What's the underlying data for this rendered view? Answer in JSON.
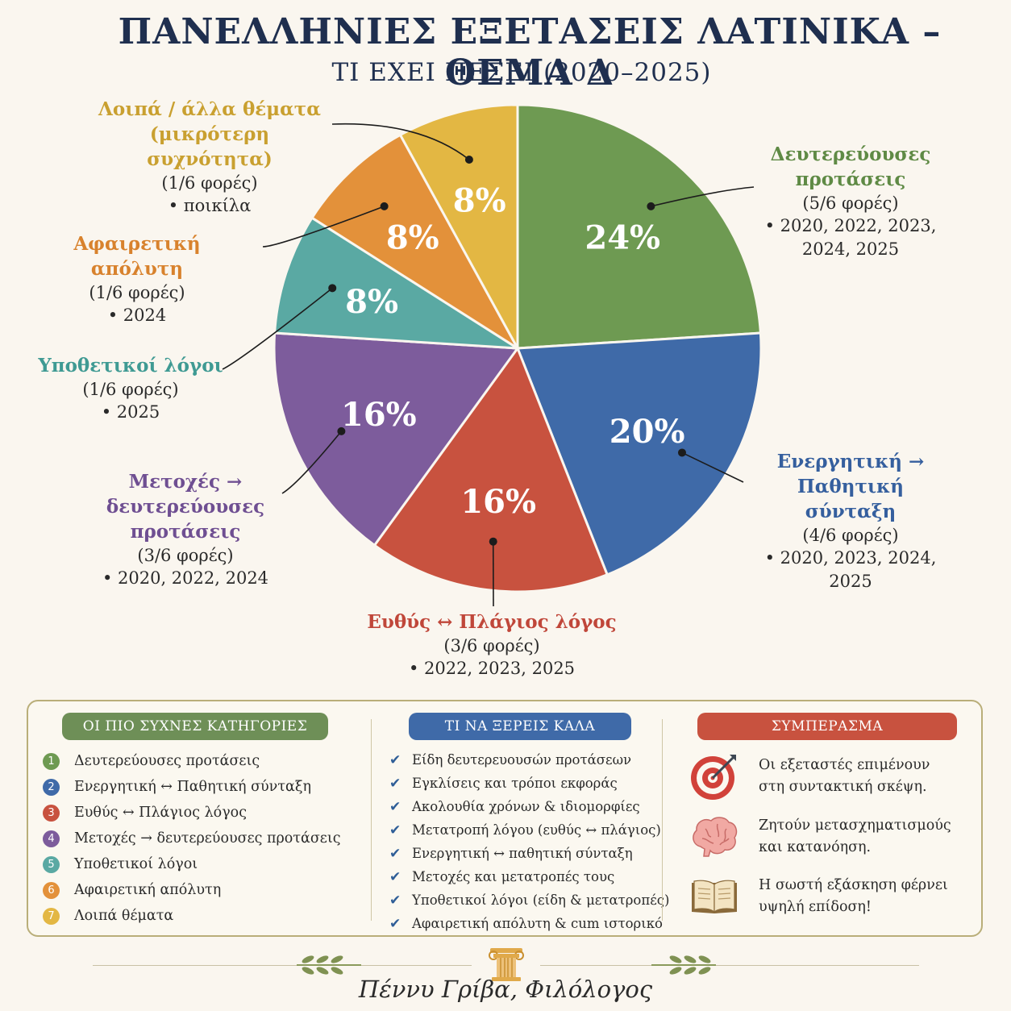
{
  "title": "ΠΑΝΕΛΛΗΝΙΕΣ ΕΞΕΤΑΣΕΙΣ ΛΑΤΙΝΙΚΑ – ΘΕΜΑ Δ",
  "subtitle": "ΤΙ ΕΧΕΙ ΠΕΣΕΙ (2020–2025)",
  "chart_data": {
    "type": "pie",
    "slices": [
      {
        "label": "Δευτερεύουσες προτάσεις",
        "value": 24,
        "value_label": "24%",
        "count": "(5/6 φορές)",
        "years": "• 2020, 2022, 2023, 2024, 2025",
        "color": "#6e9a52"
      },
      {
        "label": "Ενεργητική → Παθητική σύνταξη",
        "value": 20,
        "value_label": "20%",
        "count": "(4/6 φορές)",
        "years": "• 2020, 2023, 2024, 2025",
        "color": "#3f6aa8"
      },
      {
        "label": "Ευθύς ↔ Πλάγιος λόγος",
        "value": 16,
        "value_label": "16%",
        "count": "(3/6 φορές)",
        "years": "• 2022, 2023, 2025",
        "color": "#c8523f"
      },
      {
        "label": "Μετοχές → δευτερεύουσες προτάσεις",
        "value": 16,
        "value_label": "16%",
        "count": "(3/6 φορές)",
        "years": "• 2020, 2022, 2024",
        "color": "#7d5c9c"
      },
      {
        "label": "Υποθετικοί λόγοι",
        "value": 8,
        "value_label": "8%",
        "count": "(1/6 φορές)",
        "years": "• 2025",
        "color": "#5aa9a3"
      },
      {
        "label": "Αφαιρετική απόλυτη",
        "value": 8,
        "value_label": "8%",
        "count": "(1/6 φορές)",
        "years": "• 2024",
        "color": "#e3913a"
      },
      {
        "label": "Λοιπά / άλλα θέματα (μικρότερη συχνότητα)",
        "value": 8,
        "value_label": "8%",
        "count": "(1/6 φορές)",
        "years": "• ποικίλα",
        "color": "#e3b743"
      }
    ]
  },
  "callouts": {
    "c0": {
      "name1": "Δευτερεύουσες",
      "name2": "προτάσεις",
      "count": "(5/6 φορές)",
      "years1": "• 2020, 2022, 2023,",
      "years2": "2024, 2025"
    },
    "c1": {
      "name1": "Ενεργητική →",
      "name2": "Παθητική σύνταξη",
      "count": "(4/6 φορές)",
      "years1": "• 2020, 2023, 2024,",
      "years2": "2025"
    },
    "c2": {
      "name1": "Ευθύς ↔ Πλάγιος λόγος",
      "count": "(3/6 φορές)",
      "years1": "• 2022, 2023, 2025"
    },
    "c3": {
      "name1": "Μετοχές →",
      "name2": "δευτερεύουσες",
      "name3": "προτάσεις",
      "count": "(3/6 φορές)",
      "years1": "• 2020, 2022, 2024"
    },
    "c4": {
      "name1": "Υποθετικοί λόγοι",
      "count": "(1/6 φορές)",
      "years1": "• 2025"
    },
    "c5": {
      "name1": "Αφαιρετική απόλυτη",
      "count": "(1/6 φορές)",
      "years1": "• 2024"
    },
    "c6": {
      "name1": "Λοιπά / άλλα θέματα",
      "name2": "(μικρότερη συχνότητα)",
      "count": "(1/6 φορές)",
      "years1": "• ποικίλα"
    }
  },
  "panel": {
    "categories_title": "ΟΙ ΠΙΟ ΣΥΧΝΕΣ ΚΑΤΗΓΟΡΙΕΣ",
    "categories": [
      {
        "num": "1",
        "text": "Δευτερεύουσες προτάσεις",
        "color": "#6e9a52"
      },
      {
        "num": "2",
        "text": "Ενεργητική ↔ Παθητική σύνταξη",
        "color": "#3f6aa8"
      },
      {
        "num": "3",
        "text": "Ευθύς ↔ Πλάγιος λόγος",
        "color": "#c8523f"
      },
      {
        "num": "4",
        "text": "Μετοχές → δευτερεύουσες προτάσεις",
        "color": "#7d5c9c"
      },
      {
        "num": "5",
        "text": "Υποθετικοί λόγοι",
        "color": "#5aa9a3"
      },
      {
        "num": "6",
        "text": "Αφαιρετική απόλυτη",
        "color": "#e3913a"
      },
      {
        "num": "7",
        "text": "Λοιπά θέματα",
        "color": "#e3b743"
      }
    ],
    "know_title": "ΤΙ ΝΑ ΞΕΡΕΙΣ ΚΑΛΑ",
    "know_items": [
      "Είδη δευτερευουσών προτάσεων",
      "Εγκλίσεις και τρόποι εκφοράς",
      "Ακολουθία χρόνων & ιδιομορφίες",
      "Μετατροπή λόγου (ευθύς ↔ πλάγιος)",
      "Ενεργητική ↔ παθητική σύνταξη",
      "Μετοχές και μετατροπές τους",
      "Υποθετικοί λόγοι (είδη & μετατροπές)",
      "Αφαιρετική απόλυτη & cum ιστορικό"
    ],
    "conclusion_title": "ΣΥΜΠΕΡΑΣΜΑ",
    "conclusions": [
      {
        "icon": "target-icon",
        "line1": "Οι εξεταστές επιμένουν",
        "line2": "στη συντακτική σκέψη."
      },
      {
        "icon": "brain-icon",
        "line1": "Ζητούν μετασχηματισμούς",
        "line2": "και κατανόηση."
      },
      {
        "icon": "open-book-icon",
        "line1": "Η σωστή εξάσκηση φέρνει",
        "line2": "υψηλή επίδοση!"
      }
    ],
    "colors": {
      "green": "#6e8f57",
      "blue": "#3f6aa8",
      "red": "#c8523f"
    }
  },
  "footer": {
    "signature": "Πέννυ Γρίβα, Φιλόλογος",
    "icon": "ionic-column-icon"
  }
}
